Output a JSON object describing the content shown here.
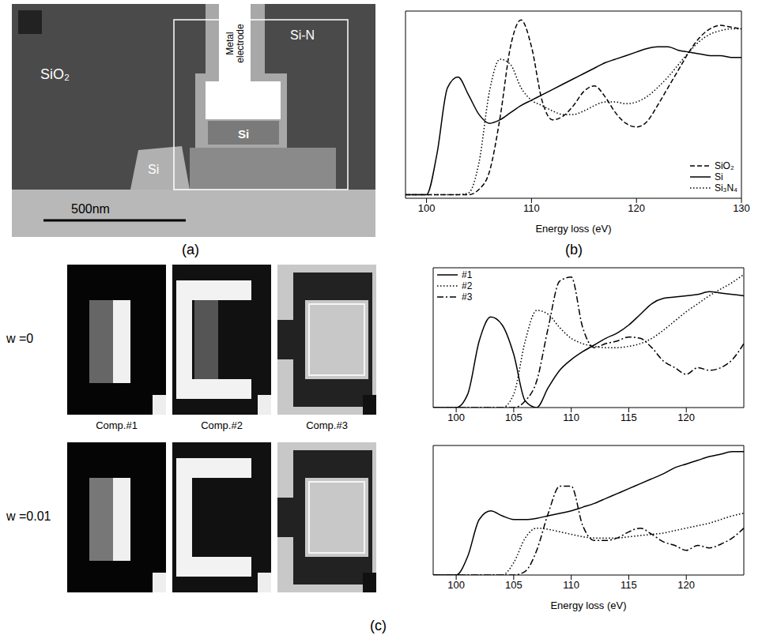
{
  "figure": {
    "panel_labels": [
      "(a)",
      "(b)",
      "(c)"
    ]
  },
  "image_a": {
    "labels": [
      "SiO₂",
      "Si",
      "Metal electrode",
      "Si-N",
      "Si"
    ],
    "scale_bar": "500nm"
  },
  "maps": {
    "rows": [
      "w =0",
      "w =0.01"
    ],
    "components": [
      "Comp.#1",
      "Comp.#2",
      "Comp.#3"
    ]
  },
  "chart_data": [
    {
      "type": "line",
      "xlabel": "Energy loss (eV)",
      "tick_labels": "x",
      "legend": "lower right",
      "x": [
        98,
        99,
        100,
        101,
        102,
        103,
        104,
        105,
        106,
        107,
        108,
        109,
        110,
        111,
        112,
        113,
        114,
        115,
        116,
        117,
        118,
        119,
        120,
        121,
        122,
        123,
        124,
        125,
        126,
        127,
        128,
        129,
        130
      ],
      "xlim": [
        98,
        130
      ],
      "xticks": [
        100,
        110,
        120,
        130
      ],
      "ylim": [
        0,
        1.05
      ],
      "series": [
        {
          "name": "SiO₂",
          "color": "#000000",
          "line_style": "dashed",
          "values": [
            0.02,
            0.02,
            0.02,
            0.02,
            0.02,
            0.02,
            0.02,
            0.05,
            0.15,
            0.45,
            0.85,
            1.0,
            0.85,
            0.55,
            0.44,
            0.46,
            0.52,
            0.6,
            0.63,
            0.57,
            0.48,
            0.42,
            0.4,
            0.43,
            0.52,
            0.62,
            0.72,
            0.82,
            0.9,
            0.95,
            0.97,
            0.96,
            0.95
          ]
        },
        {
          "name": "Si",
          "color": "#000000",
          "line_style": "solid",
          "values": [
            0.02,
            0.02,
            0.02,
            0.25,
            0.62,
            0.68,
            0.58,
            0.47,
            0.42,
            0.44,
            0.48,
            0.52,
            0.55,
            0.58,
            0.61,
            0.64,
            0.67,
            0.7,
            0.73,
            0.76,
            0.78,
            0.8,
            0.82,
            0.84,
            0.85,
            0.85,
            0.83,
            0.82,
            0.81,
            0.8,
            0.8,
            0.79,
            0.79
          ]
        },
        {
          "name": "Si₃N₄",
          "color": "#000000",
          "line_style": "dotted",
          "values": [
            0.02,
            0.02,
            0.02,
            0.02,
            0.02,
            0.02,
            0.03,
            0.2,
            0.6,
            0.78,
            0.75,
            0.62,
            0.55,
            0.52,
            0.49,
            0.47,
            0.47,
            0.49,
            0.52,
            0.54,
            0.54,
            0.53,
            0.54,
            0.57,
            0.62,
            0.68,
            0.75,
            0.82,
            0.88,
            0.92,
            0.94,
            0.95,
            0.95
          ]
        }
      ]
    },
    {
      "type": "line",
      "tick_labels": "x",
      "legend": "upper left",
      "x": [
        98,
        99,
        100,
        101,
        102,
        103,
        104,
        105,
        106,
        107,
        108,
        109,
        110,
        111,
        112,
        113,
        114,
        115,
        116,
        117,
        118,
        119,
        120,
        121,
        122,
        123,
        124,
        125
      ],
      "xlim": [
        98,
        125
      ],
      "xticks": [
        100,
        105,
        110,
        115,
        120
      ],
      "ylim": [
        0,
        1.05
      ],
      "series": [
        {
          "name": "#1",
          "color": "#000000",
          "line_style": "solid",
          "values": [
            0,
            0,
            0,
            0.1,
            0.5,
            0.68,
            0.62,
            0.4,
            0.05,
            0.0,
            0.15,
            0.28,
            0.36,
            0.42,
            0.47,
            0.52,
            0.56,
            0.62,
            0.7,
            0.78,
            0.82,
            0.83,
            0.84,
            0.85,
            0.87,
            0.86,
            0.85,
            0.84
          ]
        },
        {
          "name": "#2",
          "color": "#000000",
          "line_style": "dotted",
          "values": [
            0,
            0,
            0,
            0,
            0,
            0,
            0,
            0.1,
            0.5,
            0.73,
            0.7,
            0.6,
            0.52,
            0.48,
            0.46,
            0.45,
            0.45,
            0.46,
            0.48,
            0.52,
            0.58,
            0.65,
            0.72,
            0.78,
            0.84,
            0.89,
            0.94,
            1.0
          ]
        },
        {
          "name": "#3",
          "color": "#000000",
          "line_style": "dashdot",
          "values": [
            0,
            0,
            0,
            0,
            0,
            0,
            0,
            0,
            0.05,
            0.2,
            0.6,
            0.95,
            0.98,
            0.6,
            0.45,
            0.48,
            0.5,
            0.53,
            0.52,
            0.45,
            0.35,
            0.3,
            0.25,
            0.3,
            0.28,
            0.3,
            0.36,
            0.48
          ]
        }
      ]
    },
    {
      "type": "line",
      "xlabel": "Energy loss (eV)",
      "tick_labels": "x",
      "x": [
        98,
        99,
        100,
        101,
        102,
        103,
        104,
        105,
        106,
        107,
        108,
        109,
        110,
        111,
        112,
        113,
        114,
        115,
        116,
        117,
        118,
        119,
        120,
        121,
        122,
        123,
        124,
        125
      ],
      "xlim": [
        98,
        125
      ],
      "xticks": [
        100,
        105,
        110,
        115,
        120
      ],
      "ylim": [
        0,
        1.05
      ],
      "series": [
        {
          "color": "#000000",
          "line_style": "solid",
          "values": [
            0,
            0,
            0,
            0.15,
            0.45,
            0.52,
            0.48,
            0.45,
            0.45,
            0.46,
            0.48,
            0.5,
            0.52,
            0.55,
            0.58,
            0.62,
            0.66,
            0.7,
            0.74,
            0.78,
            0.82,
            0.87,
            0.9,
            0.93,
            0.96,
            0.98,
            1.0,
            1.0
          ]
        },
        {
          "color": "#000000",
          "line_style": "dotted",
          "values": [
            0,
            0,
            0,
            0,
            0,
            0,
            0,
            0.1,
            0.3,
            0.38,
            0.37,
            0.35,
            0.33,
            0.31,
            0.3,
            0.3,
            0.3,
            0.31,
            0.32,
            0.33,
            0.34,
            0.36,
            0.38,
            0.4,
            0.42,
            0.45,
            0.48,
            0.5
          ]
        },
        {
          "color": "#000000",
          "line_style": "dashdot",
          "values": [
            0,
            0,
            0,
            0,
            0,
            0,
            0,
            0,
            0.03,
            0.2,
            0.5,
            0.72,
            0.72,
            0.4,
            0.28,
            0.28,
            0.3,
            0.35,
            0.38,
            0.33,
            0.27,
            0.24,
            0.2,
            0.24,
            0.22,
            0.25,
            0.3,
            0.38
          ]
        }
      ]
    }
  ]
}
